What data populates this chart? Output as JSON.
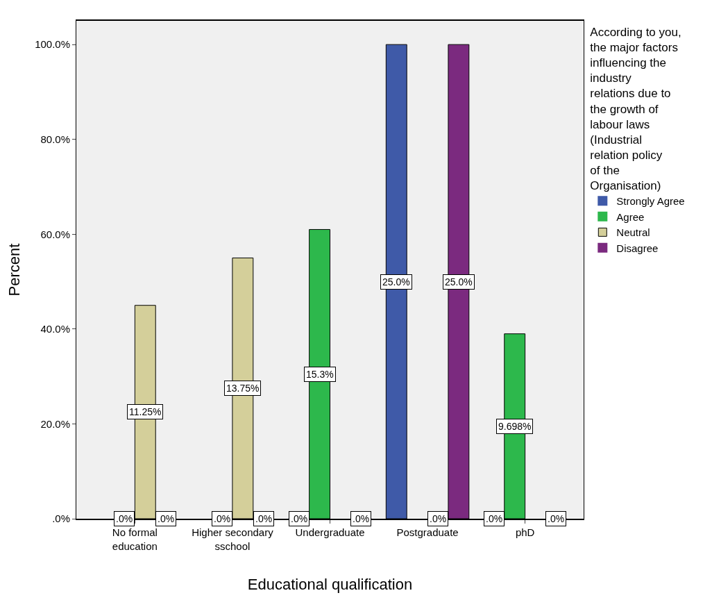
{
  "chart_data": {
    "type": "bar",
    "xlabel": "Educational qualification",
    "ylabel": "Percent",
    "legend_title": "According to you, the major factors influencing the industry relations due to the growth of labour laws (Industrial relation policy of the Organisation)",
    "categories": [
      "No formal education",
      "Higher secondary sschool",
      "Undergraduate",
      "Postgraduate",
      "phD"
    ],
    "series": [
      {
        "name": "Strongly Agree",
        "color": "#3f5aa8",
        "values": [
          null,
          null,
          0,
          100,
          0
        ]
      },
      {
        "name": "Agree",
        "color": "#2db84c",
        "values": [
          0,
          0,
          61,
          null,
          39
        ]
      },
      {
        "name": "Neutral",
        "color": "#d4cf9a",
        "values": [
          45,
          55,
          null,
          0,
          null
        ]
      },
      {
        "name": "Disagree",
        "color": "#7b2a7f",
        "values": [
          0,
          0,
          0,
          100,
          0
        ]
      }
    ],
    "annotations": [
      {
        "text": ".0%",
        "x": "No formal education",
        "y": 0
      },
      {
        "text": "11.25%",
        "x": "No formal education",
        "y": 22.5
      },
      {
        "text": ".0%",
        "x": "No formal education",
        "y": 0
      },
      {
        "text": ".0%",
        "x": "Higher secondary sschool",
        "y": 0
      },
      {
        "text": "13.75%",
        "x": "Higher secondary sschool",
        "y": 27.5
      },
      {
        "text": ".0%",
        "x": "Higher secondary sschool",
        "y": 0
      },
      {
        "text": ".0%",
        "x": "Undergraduate",
        "y": 0
      },
      {
        "text": "15.3%",
        "x": "Undergraduate",
        "y": 30.5
      },
      {
        "text": ".0%",
        "x": "Undergraduate",
        "y": 0
      },
      "25.0%",
      {
        "text": ".0%",
        "x": "Postgraduate",
        "y": 0
      },
      "25.0%",
      {
        "text": ".0%",
        "x": "phD",
        "y": 0
      },
      {
        "text": "9.698%",
        "x": "phD",
        "y": 19.5
      },
      {
        "text": ".0%",
        "x": "phD",
        "y": 0
      }
    ],
    "ylim": [
      0,
      105
    ],
    "yticks": [
      {
        "value": 0,
        "label": ".0%"
      },
      {
        "value": 20,
        "label": "20.0%"
      },
      {
        "value": 40,
        "label": "40.0%"
      },
      {
        "value": 60,
        "label": "60.0%"
      },
      {
        "value": 80,
        "label": "80.0%"
      },
      {
        "value": 100,
        "label": "100.0%"
      }
    ],
    "grid": false,
    "legend": "right"
  }
}
